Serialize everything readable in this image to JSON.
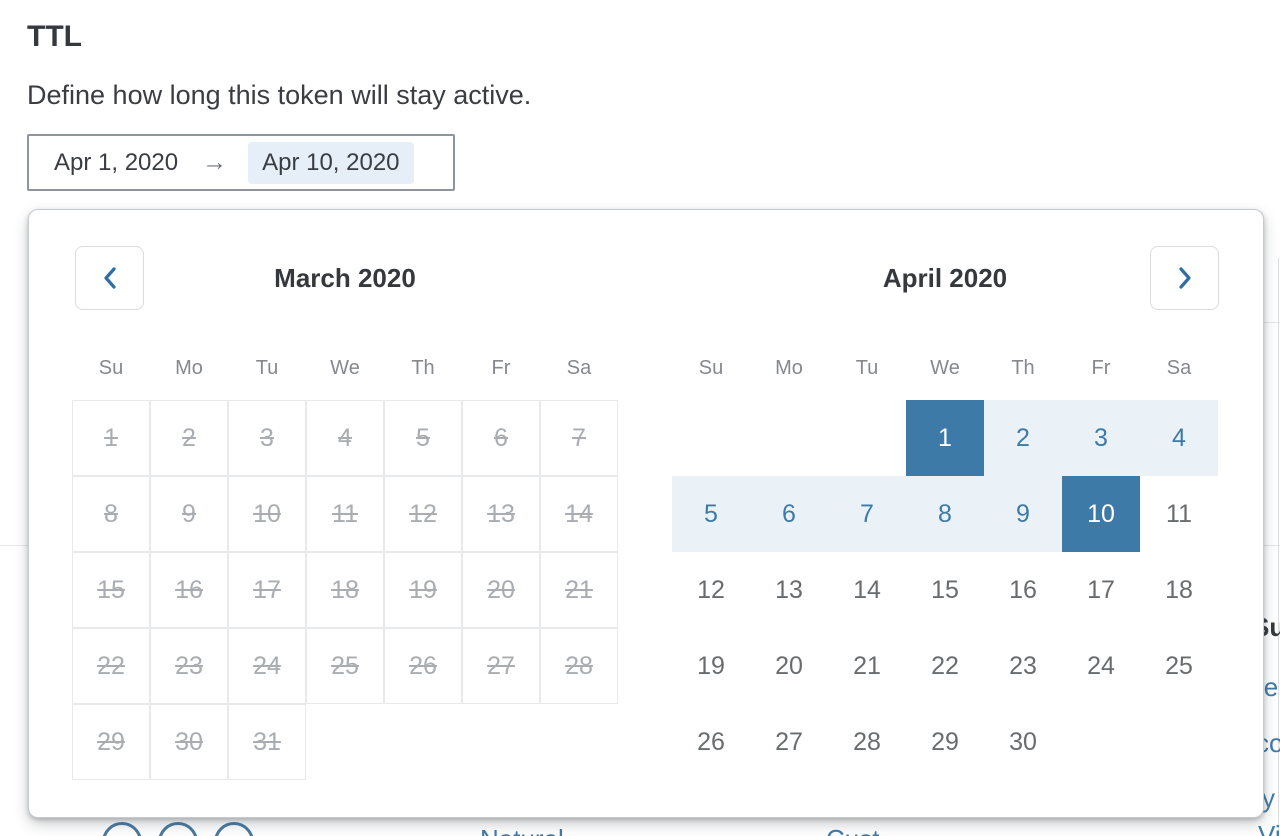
{
  "header": {
    "title": "TTL",
    "description": "Define how long this token will stay active."
  },
  "date_range_input": {
    "start_date": "Apr 1, 2020",
    "separator": "→",
    "end_date": "Apr 10, 2020"
  },
  "calendar": {
    "weekdays": [
      "Su",
      "Mo",
      "Tu",
      "We",
      "Th",
      "Fr",
      "Sa"
    ],
    "months": [
      {
        "title": "March 2020",
        "first_day_column": 0,
        "num_days": 31,
        "all_disabled": true
      },
      {
        "title": "April 2020",
        "first_day_column": 3,
        "num_days": 30,
        "all_disabled": false,
        "range_start_day": 1,
        "range_end_day": 10
      }
    ]
  },
  "colors": {
    "selected_day_bg": "#3d7aa8",
    "in_range_bg": "#eaf2f8",
    "in_range_text": "#3d7aa8",
    "disabled_day_text": "#a9adb1",
    "normal_day_text": "#696c6f",
    "accent_blue": "#2e6ea6",
    "end_date_pill_bg": "#e6eff8"
  },
  "background_fragments": {
    "heading_fragment": "Su",
    "link_fragment_1": "le",
    "link_fragment_2": "co",
    "link_fragment_3": "y",
    "link_fragment_4": "Vi",
    "bottom_link_1": "Natural",
    "bottom_link_2": "Cust"
  }
}
